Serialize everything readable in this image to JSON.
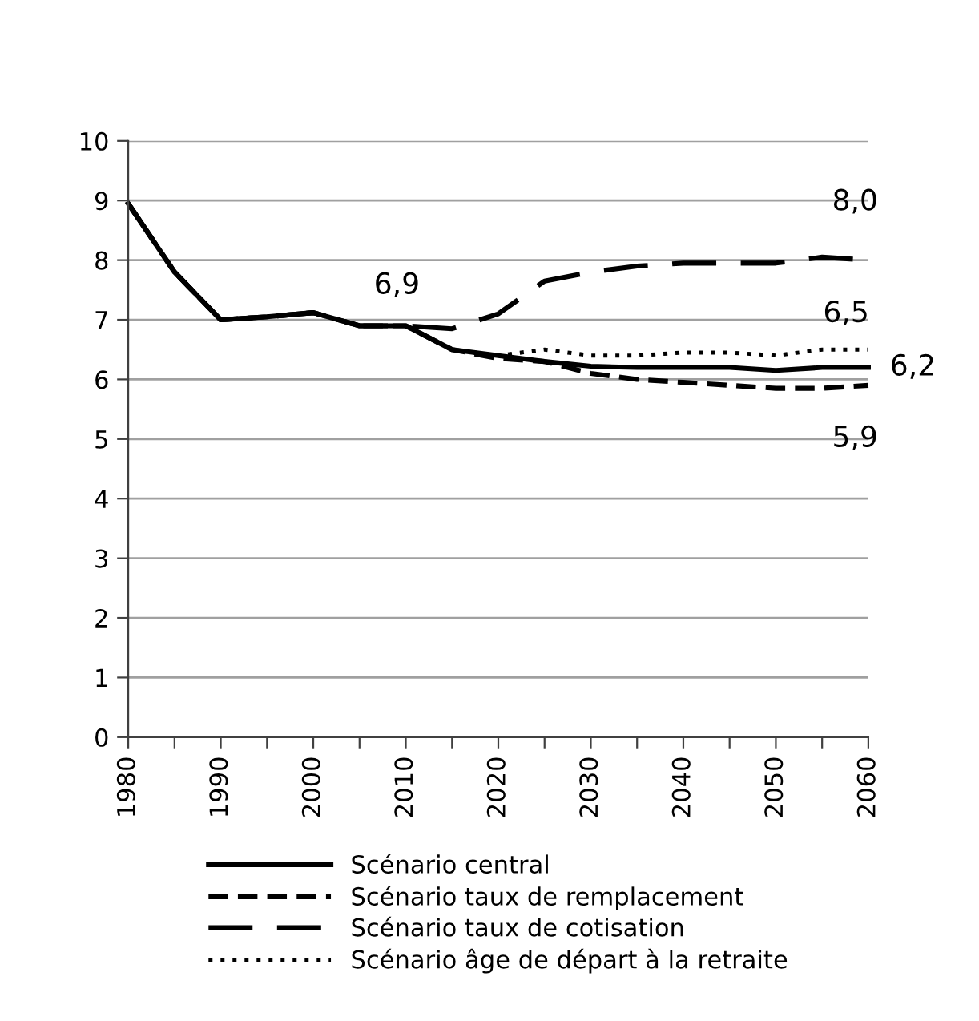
{
  "chart_data": {
    "type": "line",
    "x": [
      1980,
      1985,
      1990,
      1995,
      2000,
      2005,
      2010,
      2015,
      2020,
      2025,
      2030,
      2035,
      2040,
      2045,
      2050,
      2055,
      2060
    ],
    "series": [
      {
        "name": "Scénario central",
        "color": "#000000",
        "line_style": "solid",
        "values": [
          8.95,
          7.8,
          7.0,
          7.05,
          7.12,
          6.9,
          6.9,
          6.5,
          6.4,
          6.3,
          6.22,
          6.2,
          6.2,
          6.2,
          6.15,
          6.2,
          6.2
        ],
        "value_labels": [
          null,
          null,
          null,
          null,
          null,
          null,
          "6,9",
          null,
          null,
          null,
          null,
          null,
          null,
          null,
          null,
          null,
          "6,2"
        ]
      },
      {
        "name": "Scénario taux de remplacement",
        "color": "#000000",
        "line_style": "dashed",
        "values": [
          8.95,
          7.8,
          7.0,
          7.05,
          7.12,
          6.9,
          6.9,
          6.5,
          6.35,
          6.3,
          6.1,
          6.0,
          5.95,
          5.9,
          5.85,
          5.85,
          5.9
        ],
        "value_labels": [
          null,
          null,
          null,
          null,
          null,
          null,
          null,
          null,
          null,
          null,
          null,
          null,
          null,
          null,
          null,
          null,
          "5,9"
        ]
      },
      {
        "name": "Scénario taux de cotisation",
        "color": "#000000",
        "line_style": "longdash",
        "values": [
          8.95,
          7.8,
          7.0,
          7.05,
          7.12,
          6.9,
          6.9,
          6.85,
          7.1,
          7.65,
          7.8,
          7.9,
          7.95,
          7.95,
          7.95,
          8.05,
          8.0
        ],
        "value_labels": [
          null,
          null,
          null,
          null,
          null,
          null,
          null,
          null,
          null,
          null,
          null,
          null,
          null,
          null,
          null,
          null,
          "8,0"
        ]
      },
      {
        "name": "Scénario âge de départ à la retraite",
        "color": "#000000",
        "line_style": "dotted",
        "values": [
          8.95,
          7.8,
          7.0,
          7.05,
          7.12,
          6.9,
          6.9,
          6.5,
          6.4,
          6.5,
          6.4,
          6.4,
          6.45,
          6.45,
          6.4,
          6.5,
          6.5
        ],
        "value_labels": [
          null,
          null,
          null,
          null,
          null,
          null,
          null,
          null,
          null,
          null,
          null,
          null,
          null,
          null,
          null,
          null,
          "6,5"
        ]
      }
    ],
    "xlim": [
      1980,
      2060
    ],
    "xticks": [
      1980,
      {
        "value": 1985,
        "label": null
      },
      1990,
      {
        "value": 1995,
        "label": null
      },
      2000,
      {
        "value": 2005,
        "label": null
      },
      2010,
      {
        "value": 2015,
        "label": null
      },
      2020,
      {
        "value": 2025,
        "label": null
      },
      2030,
      {
        "value": 2035,
        "label": null
      },
      2040,
      {
        "value": 2045,
        "label": null
      },
      2050,
      {
        "value": 2055,
        "label": null
      },
      2060
    ],
    "ylim": [
      0,
      10
    ],
    "yticks": [
      0,
      1,
      2,
      3,
      4,
      5,
      6,
      7,
      8,
      9,
      10
    ],
    "grid": "y",
    "legend": "bottom"
  }
}
